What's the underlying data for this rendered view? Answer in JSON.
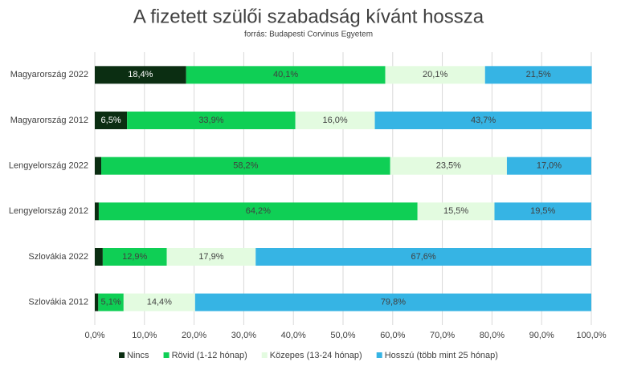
{
  "chart_data": {
    "type": "stacked-bar-horizontal",
    "title": "A fizetett szülői szabadság kívánt hossza",
    "subtitle": "forrás: Budapesti Corvinus Egyetem",
    "categories": [
      "Magyarország 2022",
      "Magyarország 2012",
      "Lengyelország 2022",
      "Lengyelország 2012",
      "Szlovákia 2022",
      "Szlovákia 2012"
    ],
    "series": [
      {
        "name": "Nincs",
        "color": "#0b2e12",
        "label_color": "#ffffff",
        "values": [
          18.4,
          6.5,
          1.3,
          0.8,
          1.6,
          0.7
        ],
        "value_labels": [
          "18,4%",
          "6,5%",
          null,
          null,
          null,
          null
        ]
      },
      {
        "name": "Rövid (1-12 hónap)",
        "color": "#0fcf55",
        "label_color": "#404040",
        "values": [
          40.1,
          33.9,
          58.2,
          64.2,
          12.9,
          5.1
        ],
        "value_labels": [
          "40,1%",
          "33,9%",
          "58,2%",
          "64,2%",
          "12,9%",
          "5,1%"
        ]
      },
      {
        "name": "Közepes (13-24 hónap)",
        "color": "#e3fbe0",
        "label_color": "#404040",
        "values": [
          20.1,
          16.0,
          23.5,
          15.5,
          17.9,
          14.4
        ],
        "value_labels": [
          "20,1%",
          "16,0%",
          "23,5%",
          "15,5%",
          "17,9%",
          "14,4%"
        ]
      },
      {
        "name": "Hosszú (több mint 25 hónap)",
        "color": "#36b4e4",
        "label_color": "#404040",
        "values": [
          21.5,
          43.7,
          17.0,
          19.5,
          67.6,
          79.8
        ],
        "value_labels": [
          "21,5%",
          "43,7%",
          "17,0%",
          "19,5%",
          "67,6%",
          "79,8%"
        ]
      }
    ],
    "xlim": [
      0,
      100
    ],
    "xticks": [
      {
        "value": 0,
        "label": "0,0%"
      },
      {
        "value": 10,
        "label": "10,0%"
      },
      {
        "value": 20,
        "label": "20,0%"
      },
      {
        "value": 30,
        "label": "30,0%"
      },
      {
        "value": 40,
        "label": "40,0%"
      },
      {
        "value": 50,
        "label": "50,0%"
      },
      {
        "value": 60,
        "label": "60,0%"
      },
      {
        "value": 70,
        "label": "70,0%"
      },
      {
        "value": 80,
        "label": "80,0%"
      },
      {
        "value": 90,
        "label": "90,0%"
      },
      {
        "value": 100,
        "label": "100,0%"
      }
    ],
    "grid": true,
    "legend": "bottom"
  }
}
